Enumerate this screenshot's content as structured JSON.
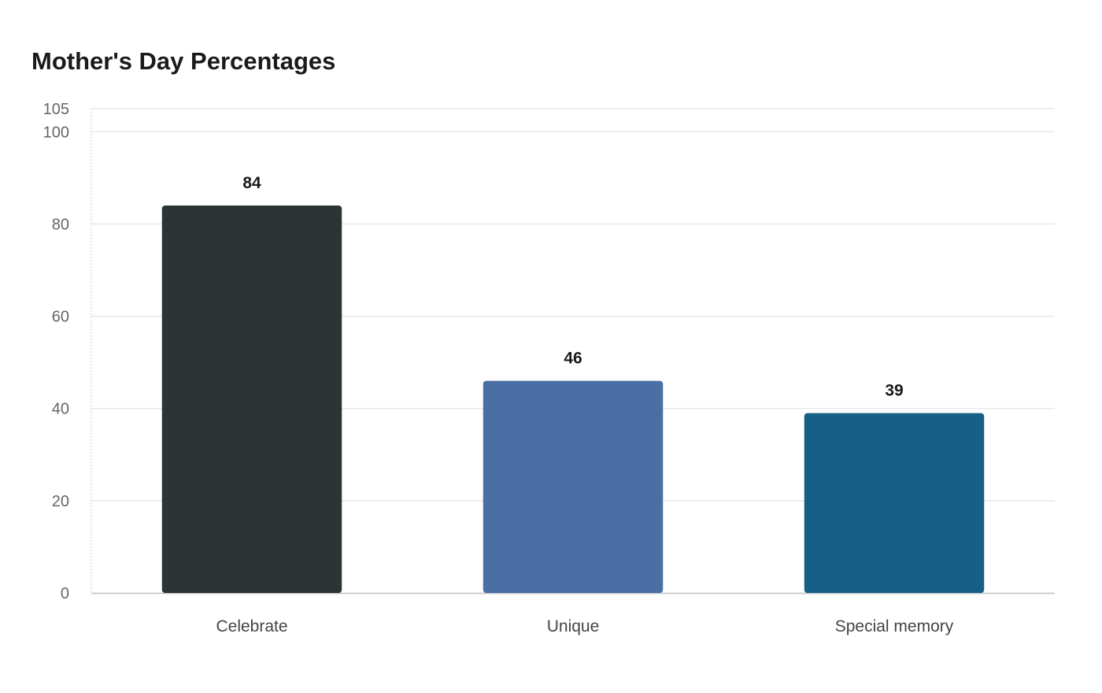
{
  "chart_data": {
    "type": "bar",
    "title": "Mother's Day Percentages",
    "xlabel": "",
    "ylabel": "",
    "categories": [
      "Celebrate",
      "Unique",
      "Special memory"
    ],
    "values": [
      84,
      46,
      39
    ],
    "colors": [
      "#2d3436",
      "#4a6fa5",
      "#166088"
    ],
    "ylim": [
      0,
      105
    ],
    "yticks": [
      0,
      20,
      40,
      60,
      80,
      100,
      105
    ],
    "grid": true,
    "legend": "none",
    "data_labels": true
  }
}
